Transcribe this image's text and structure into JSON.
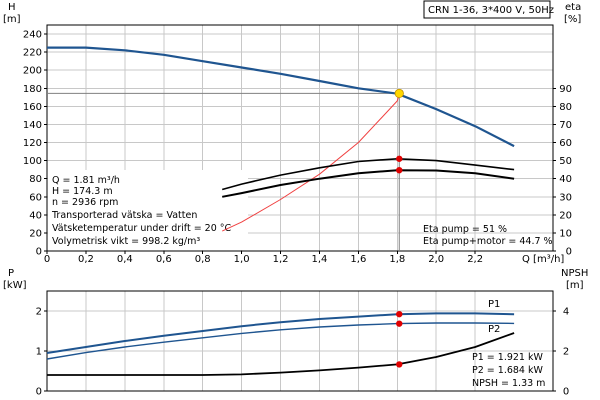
{
  "header": {
    "pump_label": "CRN 1-36, 3*400 V, 50Hz"
  },
  "chart_data": [
    {
      "type": "line",
      "x_axis": {
        "label": "Q [m³/h]",
        "ticks": [
          "0",
          "0,2",
          "0,4",
          "0,6",
          "0,8",
          "1,0",
          "1,2",
          "1,4",
          "1,6",
          "1,8",
          "2,0",
          "2,2"
        ],
        "range": [
          0,
          2.6
        ]
      },
      "y_axis_left": {
        "label_line1": "H",
        "label_line2": "[m]",
        "ticks": [
          "0",
          "20",
          "40",
          "60",
          "80",
          "100",
          "120",
          "140",
          "160",
          "180",
          "200",
          "220",
          "240"
        ],
        "range": [
          0,
          250
        ]
      },
      "y_axis_right": {
        "label_line1": "eta",
        "label_line2": "[%]",
        "ticks": [
          "0",
          "10",
          "20",
          "30",
          "40",
          "50",
          "60",
          "70",
          "80",
          "90"
        ],
        "range": [
          0,
          125
        ]
      },
      "series": [
        {
          "id": "head",
          "color": "#1f5590",
          "axis": "left",
          "x": [
            0,
            0.2,
            0.4,
            0.6,
            0.8,
            1.0,
            1.2,
            1.4,
            1.6,
            1.8,
            2.0,
            2.2,
            2.4
          ],
          "y": [
            225,
            225,
            222,
            217,
            210,
            203,
            196,
            188,
            180,
            174,
            157,
            138,
            116
          ]
        },
        {
          "id": "system-curve",
          "color": "#f04040",
          "axis": "left",
          "x": [
            0.9,
            1.0,
            1.2,
            1.4,
            1.6,
            1.8,
            1.81
          ],
          "y": [
            22,
            32,
            57,
            85,
            120,
            166,
            174.3
          ]
        },
        {
          "id": "eta-pump",
          "color": "#000000",
          "axis": "right",
          "x": [
            0.9,
            1.0,
            1.2,
            1.4,
            1.6,
            1.8,
            2.0,
            2.2,
            2.4
          ],
          "y": [
            34,
            37,
            42,
            46,
            49.5,
            51,
            50,
            47.5,
            45
          ]
        },
        {
          "id": "eta-pump-motor",
          "color": "#000000",
          "axis": "right",
          "x": [
            0.9,
            1.0,
            1.2,
            1.4,
            1.6,
            1.8,
            2.0,
            2.2,
            2.4
          ],
          "y": [
            30,
            32,
            36.5,
            40,
            43,
            44.7,
            44.5,
            43,
            40
          ]
        }
      ],
      "operating_point": {
        "x": 1.81,
        "y": 174.3,
        "color": "#ffd700"
      },
      "markers": [
        {
          "x": 1.81,
          "y": 51,
          "axis": "right",
          "color": "#e00000"
        },
        {
          "x": 1.81,
          "y": 44.7,
          "axis": "right",
          "color": "#e00000"
        }
      ],
      "info_left": [
        "Q = 1.81 m³/h",
        "H = 174.3 m",
        "n = 2936 rpm",
        "Transporterad vätska = Vatten",
        "Vätsketemperatur under drift = 20 °C",
        "Volymetrisk vikt = 998.2 kg/m³"
      ],
      "info_right": [
        "Eta pump = 51 %",
        "Eta pump+motor = 44.7 %"
      ]
    },
    {
      "type": "line",
      "y_axis_left": {
        "label_line1": "P",
        "label_line2": "[kW]",
        "ticks": [
          "0",
          "1",
          "2"
        ],
        "range": [
          0,
          2.5
        ]
      },
      "y_axis_right": {
        "label_line1": "NPSH",
        "label_line2": "[m]",
        "ticks": [
          "0",
          "2",
          "4"
        ],
        "range": [
          0,
          5
        ]
      },
      "series": [
        {
          "id": "p1",
          "name": "P1",
          "color": "#1f5590",
          "axis": "left",
          "x": [
            0,
            0.2,
            0.4,
            0.6,
            0.8,
            1.0,
            1.2,
            1.4,
            1.6,
            1.8,
            2.0,
            2.2,
            2.4
          ],
          "y": [
            0.95,
            1.1,
            1.25,
            1.38,
            1.5,
            1.62,
            1.72,
            1.8,
            1.86,
            1.921,
            1.94,
            1.94,
            1.92
          ]
        },
        {
          "id": "p2",
          "name": "P2",
          "color": "#1f5590",
          "axis": "left",
          "x": [
            0,
            0.2,
            0.4,
            0.6,
            0.8,
            1.0,
            1.2,
            1.4,
            1.6,
            1.8,
            2.0,
            2.2,
            2.4
          ],
          "y": [
            0.8,
            0.96,
            1.1,
            1.22,
            1.33,
            1.44,
            1.53,
            1.6,
            1.65,
            1.684,
            1.7,
            1.7,
            1.69
          ]
        },
        {
          "id": "npsh",
          "color": "#000000",
          "axis": "right",
          "x": [
            0,
            0.2,
            0.4,
            0.6,
            0.8,
            1.0,
            1.2,
            1.4,
            1.6,
            1.8,
            2.0,
            2.2,
            2.4
          ],
          "y": [
            0.8,
            0.8,
            0.8,
            0.8,
            0.8,
            0.83,
            0.92,
            1.03,
            1.17,
            1.33,
            1.7,
            2.2,
            2.9
          ]
        }
      ],
      "markers": [
        {
          "x": 1.81,
          "y": 1.921,
          "axis": "left",
          "color": "#e00000"
        },
        {
          "x": 1.81,
          "y": 1.684,
          "axis": "left",
          "color": "#e00000"
        },
        {
          "x": 1.81,
          "y": 1.33,
          "axis": "right",
          "color": "#e00000"
        }
      ],
      "info": [
        "P1 = 1.921 kW",
        "P2 = 1.684 kW",
        "NPSH = 1.33 m"
      ]
    }
  ]
}
